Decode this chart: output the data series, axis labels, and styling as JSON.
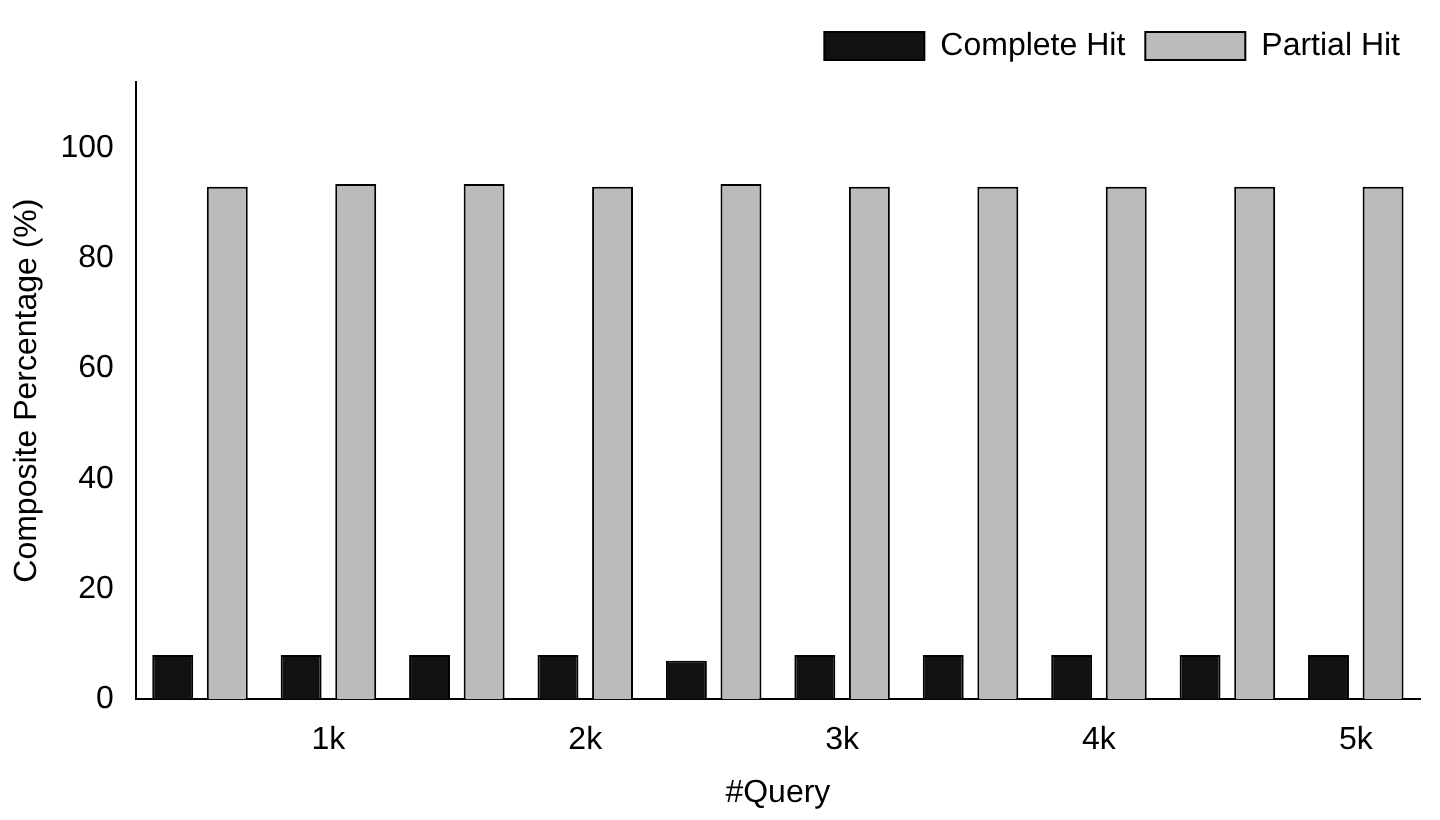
{
  "chart_data": {
    "type": "bar",
    "xlabel": "#Query",
    "ylabel": "Composite Percentage (%)",
    "categories": [
      null,
      "1k",
      null,
      "2k",
      null,
      "3k",
      null,
      "4k",
      null,
      "5k"
    ],
    "series": [
      {
        "name": "Complete Hit",
        "color": "#111111",
        "values": [
          8,
          8,
          8,
          8,
          7,
          8,
          8,
          8,
          8,
          8
        ]
      },
      {
        "name": "Partial Hit",
        "color": "#bbbbbb",
        "values": [
          93,
          93.5,
          93.5,
          93,
          93.5,
          93,
          93,
          93,
          93,
          93
        ]
      }
    ],
    "ylim": [
      0,
      112
    ],
    "yticks": [
      0,
      20,
      40,
      60,
      80,
      100
    ],
    "grid": false,
    "legend": "top right"
  }
}
